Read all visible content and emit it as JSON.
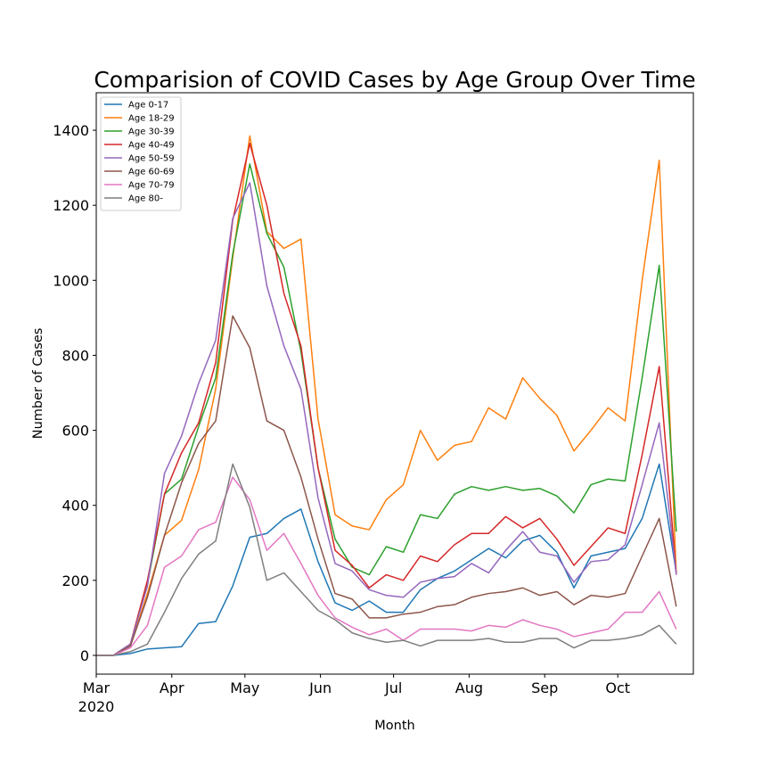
{
  "chart_data": {
    "type": "line",
    "title": "Comparision of COVID Cases by Age Group Over Time",
    "xlabel": "Month",
    "ylabel": "Number of Cases",
    "xlim": [
      "2020-03-01",
      "2020-10-31"
    ],
    "ylim": [
      -50,
      1500
    ],
    "x_tick_labels": [
      {
        "date": "2020-03-01",
        "label": "Mar",
        "sublabel": "2020"
      },
      {
        "date": "2020-04-01",
        "label": "Apr"
      },
      {
        "date": "2020-05-01",
        "label": "May"
      },
      {
        "date": "2020-06-01",
        "label": "Jun"
      },
      {
        "date": "2020-07-01",
        "label": "Jul"
      },
      {
        "date": "2020-08-01",
        "label": "Aug"
      },
      {
        "date": "2020-09-01",
        "label": "Sep"
      },
      {
        "date": "2020-10-01",
        "label": "Oct"
      }
    ],
    "y_ticks": [
      0,
      200,
      400,
      600,
      800,
      1000,
      1200,
      1400
    ],
    "grid": false,
    "legend_position": "top-left",
    "x": [
      "2020-03-01",
      "2020-03-08",
      "2020-03-15",
      "2020-03-22",
      "2020-03-29",
      "2020-04-05",
      "2020-04-12",
      "2020-04-19",
      "2020-04-26",
      "2020-05-03",
      "2020-05-10",
      "2020-05-17",
      "2020-05-24",
      "2020-05-31",
      "2020-06-07",
      "2020-06-14",
      "2020-06-21",
      "2020-06-28",
      "2020-07-05",
      "2020-07-12",
      "2020-07-19",
      "2020-07-26",
      "2020-08-02",
      "2020-08-09",
      "2020-08-16",
      "2020-08-23",
      "2020-08-30",
      "2020-09-06",
      "2020-09-13",
      "2020-09-20",
      "2020-09-27",
      "2020-10-04",
      "2020-10-11",
      "2020-10-18",
      "2020-10-25"
    ],
    "series": [
      {
        "name": "Age 0-17",
        "color": "#1f77b4",
        "values": [
          0,
          0,
          5,
          17,
          20,
          23,
          85,
          90,
          185,
          315,
          325,
          365,
          390,
          250,
          140,
          120,
          145,
          115,
          115,
          175,
          205,
          225,
          255,
          285,
          260,
          305,
          320,
          275,
          180,
          265,
          275,
          285,
          365,
          510,
          220
        ]
      },
      {
        "name": "Age 18-29",
        "color": "#ff7f0e",
        "values": [
          0,
          0,
          25,
          165,
          320,
          360,
          495,
          710,
          1060,
          1385,
          1130,
          1085,
          1110,
          630,
          375,
          345,
          335,
          415,
          455,
          600,
          520,
          560,
          570,
          660,
          630,
          740,
          685,
          640,
          545,
          600,
          660,
          625,
          1000,
          1320,
          215
        ]
      },
      {
        "name": "Age 30-39",
        "color": "#2ca02c",
        "values": [
          0,
          0,
          30,
          190,
          430,
          470,
          610,
          740,
          1070,
          1310,
          1125,
          1035,
          810,
          500,
          310,
          235,
          215,
          290,
          275,
          375,
          365,
          430,
          450,
          440,
          450,
          440,
          445,
          425,
          380,
          455,
          470,
          465,
          740,
          1040,
          330
        ]
      },
      {
        "name": "Age 40-49",
        "color": "#d62728",
        "values": [
          0,
          0,
          30,
          200,
          430,
          540,
          620,
          780,
          1160,
          1365,
          1200,
          965,
          825,
          500,
          280,
          240,
          180,
          215,
          200,
          265,
          250,
          295,
          325,
          325,
          370,
          340,
          365,
          310,
          240,
          290,
          340,
          325,
          535,
          770,
          215
        ]
      },
      {
        "name": "Age 50-59",
        "color": "#9467bd",
        "values": [
          0,
          0,
          30,
          185,
          485,
          585,
          725,
          840,
          1165,
          1260,
          985,
          825,
          710,
          420,
          245,
          225,
          175,
          160,
          155,
          195,
          205,
          210,
          245,
          220,
          280,
          330,
          275,
          265,
          195,
          250,
          255,
          295,
          455,
          620,
          215
        ]
      },
      {
        "name": "Age 60-69",
        "color": "#8c564b",
        "values": [
          0,
          0,
          25,
          155,
          320,
          460,
          565,
          625,
          905,
          820,
          625,
          600,
          475,
          310,
          165,
          150,
          100,
          100,
          110,
          115,
          130,
          135,
          155,
          165,
          170,
          180,
          160,
          170,
          135,
          160,
          155,
          165,
          265,
          365,
          130
        ]
      },
      {
        "name": "Age 70-79",
        "color": "#e377c2",
        "values": [
          0,
          0,
          20,
          80,
          235,
          265,
          335,
          355,
          475,
          415,
          280,
          325,
          245,
          160,
          100,
          75,
          55,
          70,
          40,
          70,
          70,
          70,
          65,
          80,
          75,
          95,
          80,
          70,
          50,
          60,
          70,
          115,
          115,
          170,
          70
        ]
      },
      {
        "name": "Age 80-",
        "color": "#7f7f7f",
        "values": [
          0,
          0,
          10,
          30,
          115,
          205,
          270,
          305,
          510,
          395,
          200,
          220,
          170,
          120,
          95,
          60,
          45,
          35,
          40,
          25,
          40,
          40,
          40,
          45,
          35,
          35,
          45,
          45,
          20,
          40,
          40,
          45,
          55,
          80,
          30
        ]
      }
    ]
  }
}
